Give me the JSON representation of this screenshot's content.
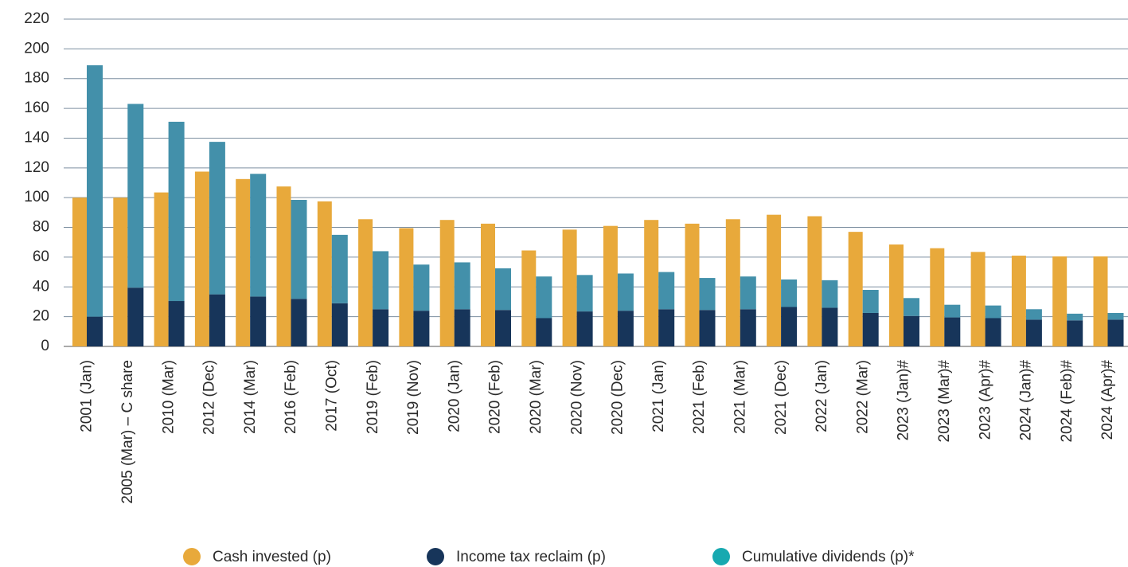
{
  "chart_data": {
    "type": "bar",
    "categories": [
      "2001 (Jan)",
      "2005 (Mar) – C share",
      "2010 (Mar)",
      "2012 (Dec)",
      "2014 (Mar)",
      "2016 (Feb)",
      "2017 (Oct)",
      "2019 (Feb)",
      "2019 (Nov)",
      "2020 (Jan)",
      "2020 (Feb)",
      "2020 (Mar)",
      "2020 (Nov)",
      "2020 (Dec)",
      "2021 (Jan)",
      "2021 (Feb)",
      "2021 (Mar)",
      "2021 (Dec)",
      "2022 (Jan)",
      "2022 (Mar)",
      "2023 (Jan)#",
      "2023 (Mar)#",
      "2023 (Apr)#",
      "2024 (Jan)#",
      "2024 (Feb)#",
      "2024 (Apr)#"
    ],
    "series": [
      {
        "name": "Cash invested (p)",
        "color": "#e8a93b",
        "values": [
          100,
          100,
          103.5,
          117.5,
          112.5,
          107.5,
          97.5,
          85.5,
          79.5,
          85,
          82.5,
          64.5,
          78.5,
          81,
          85,
          82.5,
          85.5,
          88.5,
          87.5,
          77,
          68.5,
          66,
          63.5,
          61,
          60.5,
          60.5
        ]
      },
      {
        "name": "Income tax reclaim (p)",
        "color": "#17355a",
        "stack": "b",
        "values": [
          20,
          39.5,
          30.5,
          35,
          33.5,
          32,
          29,
          25,
          24,
          25,
          24.5,
          19,
          23.5,
          24,
          25,
          24.5,
          25,
          26.5,
          26,
          22.5,
          20.5,
          19.5,
          19,
          18,
          17.5,
          18
        ]
      },
      {
        "name": "Cumulative dividends (p)*",
        "color": "#4390aa",
        "legend_color": "#17a9b0",
        "stack": "b",
        "values": [
          169,
          123.5,
          120.5,
          102.5,
          82.5,
          66.5,
          46,
          39,
          31,
          31.5,
          28,
          28,
          24.5,
          25,
          25,
          21.5,
          22,
          18.5,
          18.5,
          15.5,
          12,
          8.5,
          8.5,
          7,
          4.5,
          4.5
        ]
      }
    ],
    "ylim": [
      0,
      220
    ],
    "yticks": [
      0,
      20,
      40,
      60,
      80,
      100,
      120,
      140,
      160,
      180,
      200,
      220
    ],
    "grid": true
  }
}
